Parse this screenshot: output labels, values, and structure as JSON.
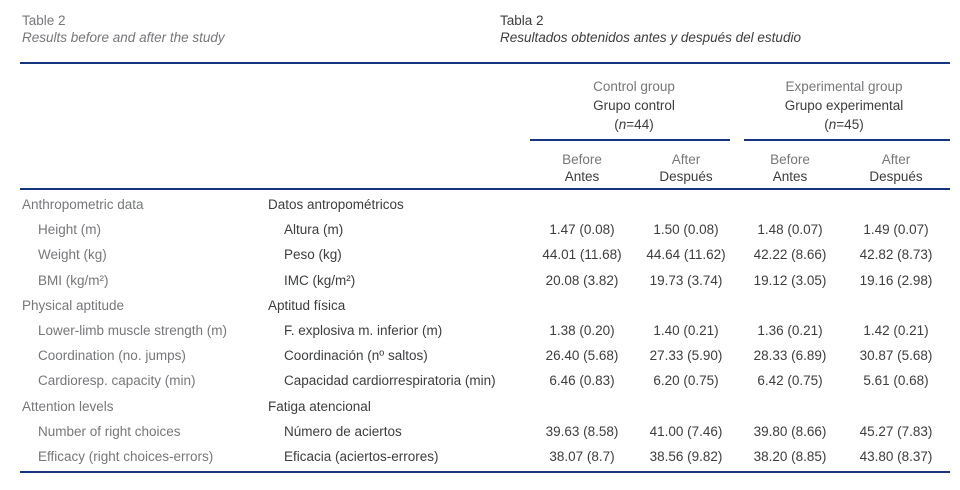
{
  "colors": {
    "rule_navy": "#16357e",
    "text_gray": "#76777a",
    "text_dark": "#3c3d3f",
    "background": "#ffffff"
  },
  "titles": {
    "en": {
      "label": "Table 2",
      "caption": "Results before and after the study"
    },
    "es": {
      "label": "Tabla 2",
      "caption": "Resultados obtenidos antes y después del estudio"
    }
  },
  "header": {
    "groups": [
      {
        "name_en": "Control group",
        "name_es": "Grupo control",
        "n_prefix": "(",
        "n_italic": "n",
        "n_suffix": "=44)"
      },
      {
        "name_en": "Experimental group",
        "name_es": "Grupo experimental",
        "n_prefix": "(",
        "n_italic": "n",
        "n_suffix": "=45)"
      }
    ],
    "subcolumns": [
      {
        "en": "Before",
        "es": "Antes"
      },
      {
        "en": "After",
        "es": "Después"
      },
      {
        "en": "Before",
        "es": "Antes"
      },
      {
        "en": "After",
        "es": "Después"
      }
    ]
  },
  "table": {
    "rows": [
      {
        "type": "category",
        "en": "Anthropometric data",
        "es": "Datos antropométricos",
        "values": [
          "",
          "",
          "",
          ""
        ]
      },
      {
        "type": "item",
        "en": "Height (m)",
        "es": "Altura (m)",
        "values": [
          "1.47 (0.08)",
          "1.50 (0.08)",
          "1.48 (0.07)",
          "1.49 (0.07)"
        ]
      },
      {
        "type": "item",
        "en": "Weight (kg)",
        "es": "Peso (kg)",
        "values": [
          "44.01 (11.68)",
          "44.64 (11.62)",
          "42.22 (8.66)",
          "42.82 (8.73)"
        ]
      },
      {
        "type": "item",
        "en": "BMI (kg/m²)",
        "es": "IMC (kg/m²)",
        "values": [
          "20.08 (3.82)",
          "19.73 (3.74)",
          "19.12 (3.05)",
          "19.16 (2.98)"
        ]
      },
      {
        "type": "category",
        "en": "Physical aptitude",
        "es": "Aptitud física",
        "values": [
          "",
          "",
          "",
          ""
        ]
      },
      {
        "type": "item",
        "en": "Lower-limb muscle strength (m)",
        "es": "F. explosiva m. inferior (m)",
        "values": [
          "1.38 (0.20)",
          "1.40 (0.21)",
          "1.36 (0.21)",
          "1.42 (0.21)"
        ]
      },
      {
        "type": "item",
        "en": "Coordination (no. jumps)",
        "es": "Coordinación (nº saltos)",
        "values": [
          "26.40 (5.68)",
          "27.33 (5.90)",
          "28.33 (6.89)",
          "30.87 (5.68)"
        ]
      },
      {
        "type": "item",
        "en": "Cardioresp. capacity (min)",
        "es": "Capacidad cardiorrespiratoria (min)",
        "values": [
          "6.46 (0.83)",
          "6.20 (0.75)",
          "6.42 (0.75)",
          "5.61 (0.68)"
        ]
      },
      {
        "type": "category",
        "en": "Attention levels",
        "es": "Fatiga atencional",
        "values": [
          "",
          "",
          "",
          ""
        ]
      },
      {
        "type": "item",
        "en": "Number of right choices",
        "es": "Número de aciertos",
        "values": [
          "39.63 (8.58)",
          "41.00 (7.46)",
          "39.80 (8.66)",
          "45.27 (7.83)"
        ]
      },
      {
        "type": "item",
        "en": "Efficacy (right choices-errors)",
        "es": "Eficacia (aciertos-errores)",
        "values": [
          "38.07 (8.7)",
          "38.56 (9.82)",
          "38.20 (8.85)",
          "43.80 (8.37)"
        ]
      }
    ]
  }
}
